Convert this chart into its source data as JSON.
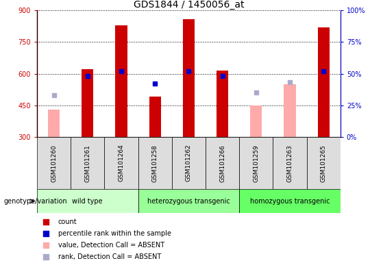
{
  "title": "GDS1844 / 1450056_at",
  "samples": [
    "GSM101260",
    "GSM101261",
    "GSM101264",
    "GSM101258",
    "GSM101262",
    "GSM101266",
    "GSM101259",
    "GSM101263",
    "GSM101265"
  ],
  "groups": [
    {
      "label": "wild type",
      "indices": [
        0,
        1,
        2
      ],
      "color": "#ccffcc"
    },
    {
      "label": "heterozygous transgenic",
      "indices": [
        3,
        4,
        5
      ],
      "color": "#99ff99"
    },
    {
      "label": "homozygous transgenic",
      "indices": [
        6,
        7,
        8
      ],
      "color": "#66ff66"
    }
  ],
  "count_values": [
    null,
    620,
    830,
    490,
    860,
    615,
    null,
    null,
    820
  ],
  "count_absent_values": [
    430,
    null,
    null,
    null,
    null,
    null,
    450,
    550,
    null
  ],
  "rank_pct_values": [
    null,
    48,
    52,
    42,
    52,
    48,
    null,
    null,
    52
  ],
  "rank_pct_absent_values": [
    33,
    null,
    null,
    null,
    null,
    null,
    35,
    43,
    null
  ],
  "ylim_left": [
    300,
    900
  ],
  "ylim_right": [
    0,
    100
  ],
  "yticks_left": [
    300,
    450,
    600,
    750,
    900
  ],
  "yticks_right": [
    0,
    25,
    50,
    75,
    100
  ],
  "bar_bottom": 300,
  "count_color": "#cc0000",
  "absent_count_color": "#ffaaaa",
  "rank_color": "#0000cc",
  "absent_rank_color": "#aaaacc",
  "background_color": "#ffffff",
  "left_tick_color": "#cc0000",
  "right_tick_color": "#0000cc",
  "legend_items": [
    {
      "color": "#cc0000",
      "label": "count"
    },
    {
      "color": "#0000cc",
      "label": "percentile rank within the sample"
    },
    {
      "color": "#ffaaaa",
      "label": "value, Detection Call = ABSENT"
    },
    {
      "color": "#aaaacc",
      "label": "rank, Detection Call = ABSENT"
    }
  ]
}
